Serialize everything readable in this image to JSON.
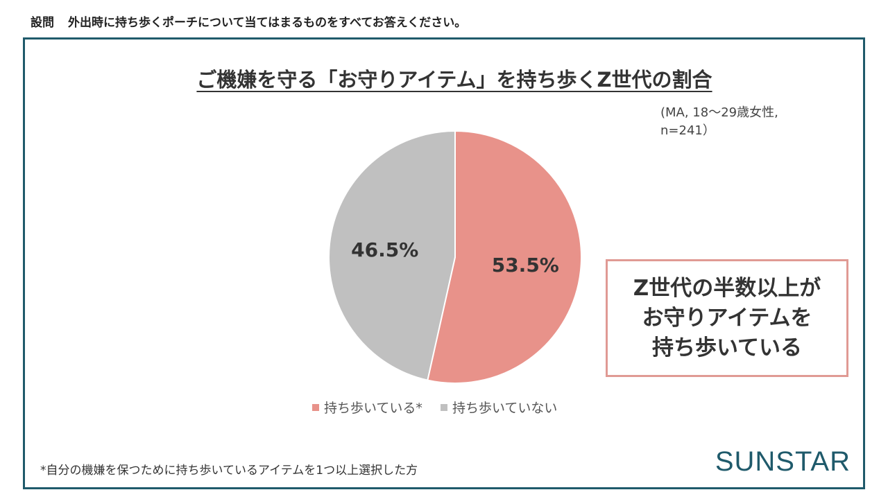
{
  "question": {
    "prefix": "設問",
    "text": "外出時に持ち歩くポーチについて当てはまるものをすべてお答えください。"
  },
  "sample_note": [
    "(MA, 18～29歳女性,",
    "n=241）"
  ],
  "callout": {
    "lines": [
      "Z世代の半数以上が",
      "お守りアイテムを",
      "持ち歩いている"
    ]
  },
  "footnote": "*自分の機嫌を保つために持ち歩いているアイテムを1つ以上選択した方",
  "logo": "SUNSTAR",
  "colors": {
    "frame": "#1f5a6b",
    "carry": "#e8928a",
    "not_carry": "#c0c0c0",
    "callout_border": "#e09a94",
    "logo": "#1f5a6b"
  },
  "chart_data": {
    "type": "pie",
    "title": "ご機嫌を守る「お守りアイテム」を持ち歩くZ世代の割合",
    "unit": "%",
    "legend_position": "bottom",
    "slices": [
      {
        "label": "持ち歩いている*",
        "value": 53.5,
        "display": "53.5%",
        "color": "#e8928a"
      },
      {
        "label": "持ち歩いていない",
        "value": 46.5,
        "display": "46.5%",
        "color": "#c0c0c0"
      }
    ]
  }
}
